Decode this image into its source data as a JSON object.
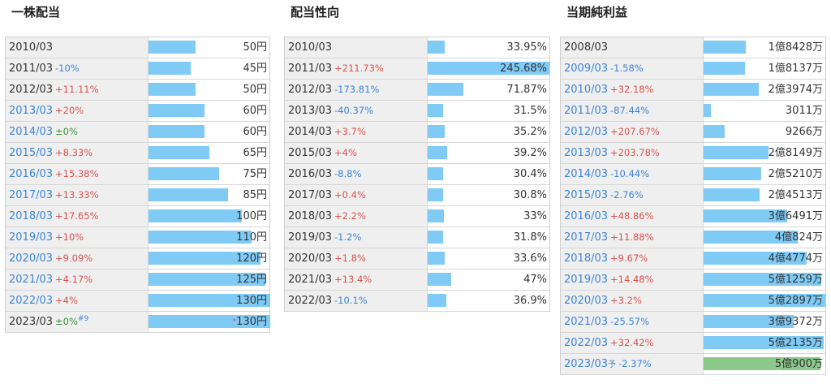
{
  "colors": {
    "bar": "#7fcbf5",
    "forecast_bar": "#8bc98b",
    "positive": "#d9534f",
    "negative": "#3d84d6",
    "zero": "#3c8f3c"
  },
  "panels": [
    {
      "title": "一株配当",
      "max": 130,
      "rows": [
        {
          "year": "2010/03",
          "change": "",
          "sign": "",
          "value": "50円",
          "num": 50
        },
        {
          "year": "2011/03",
          "change": "-10%",
          "sign": "neg",
          "value": "45円",
          "num": 45
        },
        {
          "year": "2012/03",
          "change": "+11.11%",
          "sign": "pos",
          "value": "50円",
          "num": 50
        },
        {
          "year": "2013/03",
          "change": "+20%",
          "sign": "pos",
          "value": "60円",
          "num": 60,
          "link": true
        },
        {
          "year": "2014/03",
          "change": "±0%",
          "sign": "zero",
          "value": "60円",
          "num": 60,
          "link": true
        },
        {
          "year": "2015/03",
          "change": "+8.33%",
          "sign": "pos",
          "value": "65円",
          "num": 65,
          "link": true
        },
        {
          "year": "2016/03",
          "change": "+15.38%",
          "sign": "pos",
          "value": "75円",
          "num": 75,
          "link": true
        },
        {
          "year": "2017/03",
          "change": "+13.33%",
          "sign": "pos",
          "value": "85円",
          "num": 85,
          "link": true
        },
        {
          "year": "2018/03",
          "change": "+17.65%",
          "sign": "pos",
          "value": "100円",
          "num": 100,
          "link": true
        },
        {
          "year": "2019/03",
          "change": "+10%",
          "sign": "pos",
          "value": "110円",
          "num": 110,
          "link": true
        },
        {
          "year": "2020/03",
          "change": "+9.09%",
          "sign": "pos",
          "value": "120円",
          "num": 120,
          "link": true
        },
        {
          "year": "2021/03",
          "change": "+4.17%",
          "sign": "pos",
          "value": "125円",
          "num": 125,
          "link": true
        },
        {
          "year": "2022/03",
          "change": "+4%",
          "sign": "pos",
          "value": "130円",
          "num": 130,
          "link": true
        },
        {
          "year": "2023/03",
          "change": "±0%",
          "sign": "zero",
          "note": "#9",
          "mark": "*",
          "value": "130円",
          "num": 130
        }
      ]
    },
    {
      "title": "配当性向",
      "max": 245.68,
      "rows": [
        {
          "year": "2010/03",
          "change": "",
          "sign": "",
          "value": "33.95%",
          "num": 33.95
        },
        {
          "year": "2011/03",
          "change": "+211.73%",
          "sign": "pos",
          "value": "245.68%",
          "num": 245.68
        },
        {
          "year": "2012/03",
          "change": "-173.81%",
          "sign": "neg",
          "value": "71.87%",
          "num": 71.87
        },
        {
          "year": "2013/03",
          "change": "-40.37%",
          "sign": "neg",
          "value": "31.5%",
          "num": 31.5
        },
        {
          "year": "2014/03",
          "change": "+3.7%",
          "sign": "pos",
          "value": "35.2%",
          "num": 35.2
        },
        {
          "year": "2015/03",
          "change": "+4%",
          "sign": "pos",
          "value": "39.2%",
          "num": 39.2
        },
        {
          "year": "2016/03",
          "change": "-8.8%",
          "sign": "neg",
          "value": "30.4%",
          "num": 30.4
        },
        {
          "year": "2017/03",
          "change": "+0.4%",
          "sign": "pos",
          "value": "30.8%",
          "num": 30.8
        },
        {
          "year": "2018/03",
          "change": "+2.2%",
          "sign": "pos",
          "value": "33%",
          "num": 33
        },
        {
          "year": "2019/03",
          "change": "-1.2%",
          "sign": "neg",
          "value": "31.8%",
          "num": 31.8
        },
        {
          "year": "2020/03",
          "change": "+1.8%",
          "sign": "pos",
          "value": "33.6%",
          "num": 33.6
        },
        {
          "year": "2021/03",
          "change": "+13.4%",
          "sign": "pos",
          "value": "47%",
          "num": 47
        },
        {
          "year": "2022/03",
          "change": "-10.1%",
          "sign": "neg",
          "value": "36.9%",
          "num": 36.9
        }
      ]
    },
    {
      "title": "当期純利益",
      "max": 53000,
      "rows": [
        {
          "year": "2008/03",
          "change": "",
          "sign": "",
          "value": "1億8428万",
          "num": 18428
        },
        {
          "year": "2009/03",
          "change": "-1.58%",
          "sign": "neg",
          "value": "1億8137万",
          "num": 18137,
          "link": true
        },
        {
          "year": "2010/03",
          "change": "+32.18%",
          "sign": "pos",
          "value": "2億3974万",
          "num": 23974,
          "link": true
        },
        {
          "year": "2011/03",
          "change": "-87.44%",
          "sign": "neg",
          "value": "3011万",
          "num": 3011,
          "link": true
        },
        {
          "year": "2012/03",
          "change": "+207.67%",
          "sign": "pos",
          "value": "9266万",
          "num": 9266,
          "link": true
        },
        {
          "year": "2013/03",
          "change": "+203.78%",
          "sign": "pos",
          "value": "2億8149万",
          "num": 28149,
          "link": true
        },
        {
          "year": "2014/03",
          "change": "-10.44%",
          "sign": "neg",
          "value": "2億5210万",
          "num": 25210,
          "link": true
        },
        {
          "year": "2015/03",
          "change": "-2.76%",
          "sign": "neg",
          "value": "2億4513万",
          "num": 24513,
          "link": true
        },
        {
          "year": "2016/03",
          "change": "+48.86%",
          "sign": "pos",
          "value": "3億6491万",
          "num": 36491,
          "link": true
        },
        {
          "year": "2017/03",
          "change": "+11.88%",
          "sign": "pos",
          "value": "4億824万",
          "num": 40824,
          "link": true
        },
        {
          "year": "2018/03",
          "change": "+9.67%",
          "sign": "pos",
          "value": "4億4774万",
          "num": 44774,
          "link": true
        },
        {
          "year": "2019/03",
          "change": "+14.48%",
          "sign": "pos",
          "value": "5億1259万",
          "num": 51259,
          "link": true
        },
        {
          "year": "2020/03",
          "change": "+3.2%",
          "sign": "pos",
          "value": "5億2897万",
          "num": 52897,
          "link": true
        },
        {
          "year": "2021/03",
          "change": "-25.57%",
          "sign": "neg",
          "value": "3億9372万",
          "num": 39372,
          "link": true
        },
        {
          "year": "2022/03",
          "change": "+32.42%",
          "sign": "pos",
          "value": "5億2135万",
          "num": 52135,
          "link": true
        },
        {
          "year": "2023/03",
          "forecast": "予",
          "change": "-2.37%",
          "sign": "neg",
          "value": "5億900万",
          "num": 50900,
          "link": true,
          "fc": true
        }
      ]
    }
  ]
}
